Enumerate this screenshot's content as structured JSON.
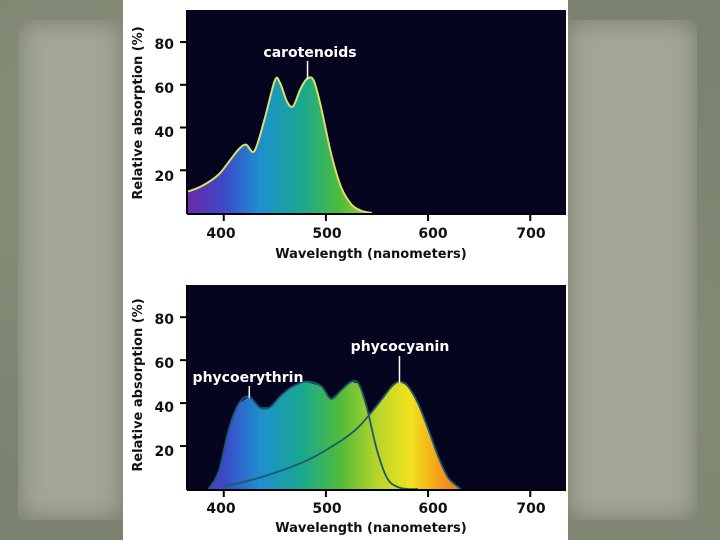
{
  "slide": {
    "background_color": "#7b8270",
    "paper_color": "#a3a796",
    "panel_color": "#ffffff"
  },
  "chart_data": [
    {
      "type": "area",
      "title": "",
      "xlabel": "Wavelength (nanometers)",
      "ylabel": "Relative absorption (%)",
      "xlim": [
        365,
        735
      ],
      "ylim": [
        0,
        95
      ],
      "xticks": [
        400,
        500,
        600,
        700
      ],
      "yticks": [
        20,
        40,
        60,
        80
      ],
      "grid": false,
      "plot_background": "#05051f",
      "series": [
        {
          "name": "carotenoids",
          "x": [
            365,
            380,
            395,
            405,
            415,
            422,
            430,
            440,
            450,
            455,
            462,
            468,
            475,
            482,
            488,
            495,
            505,
            515,
            525,
            535,
            545
          ],
          "y": [
            10,
            13,
            18,
            24,
            30,
            32,
            29,
            44,
            62,
            61,
            52,
            50,
            58,
            63,
            62,
            50,
            28,
            12,
            4,
            1,
            0
          ]
        }
      ],
      "annotations": [
        {
          "text": "carotenoids",
          "x": 482,
          "y": 63
        }
      ]
    },
    {
      "type": "area",
      "title": "",
      "xlabel": "Wavelength (nanometers)",
      "ylabel": "Relative absorption (%)",
      "xlim": [
        365,
        735
      ],
      "ylim": [
        0,
        95
      ],
      "xticks": [
        400,
        500,
        600,
        700
      ],
      "yticks": [
        20,
        40,
        60,
        80
      ],
      "grid": false,
      "plot_background": "#05051f",
      "series": [
        {
          "name": "phycoerythrin",
          "x": [
            385,
            395,
            405,
            415,
            425,
            435,
            445,
            455,
            465,
            480,
            495,
            505,
            515,
            525,
            532,
            540,
            550,
            560,
            570,
            580,
            590
          ],
          "y": [
            0,
            8,
            28,
            40,
            43,
            38,
            38,
            43,
            47,
            50,
            48,
            42,
            46,
            50,
            49,
            38,
            18,
            5,
            1,
            0,
            0
          ]
        },
        {
          "name": "phycocyanin",
          "x": [
            400,
            440,
            480,
            510,
            530,
            545,
            555,
            565,
            572,
            580,
            590,
            600,
            610,
            620,
            632
          ],
          "y": [
            1,
            6,
            13,
            21,
            28,
            36,
            42,
            48,
            50,
            48,
            40,
            28,
            15,
            5,
            0
          ]
        }
      ],
      "annotations": [
        {
          "text": "phycoerythrin",
          "x": 425,
          "y": 43
        },
        {
          "text": "phycocyanin",
          "x": 572,
          "y": 50
        }
      ]
    }
  ]
}
